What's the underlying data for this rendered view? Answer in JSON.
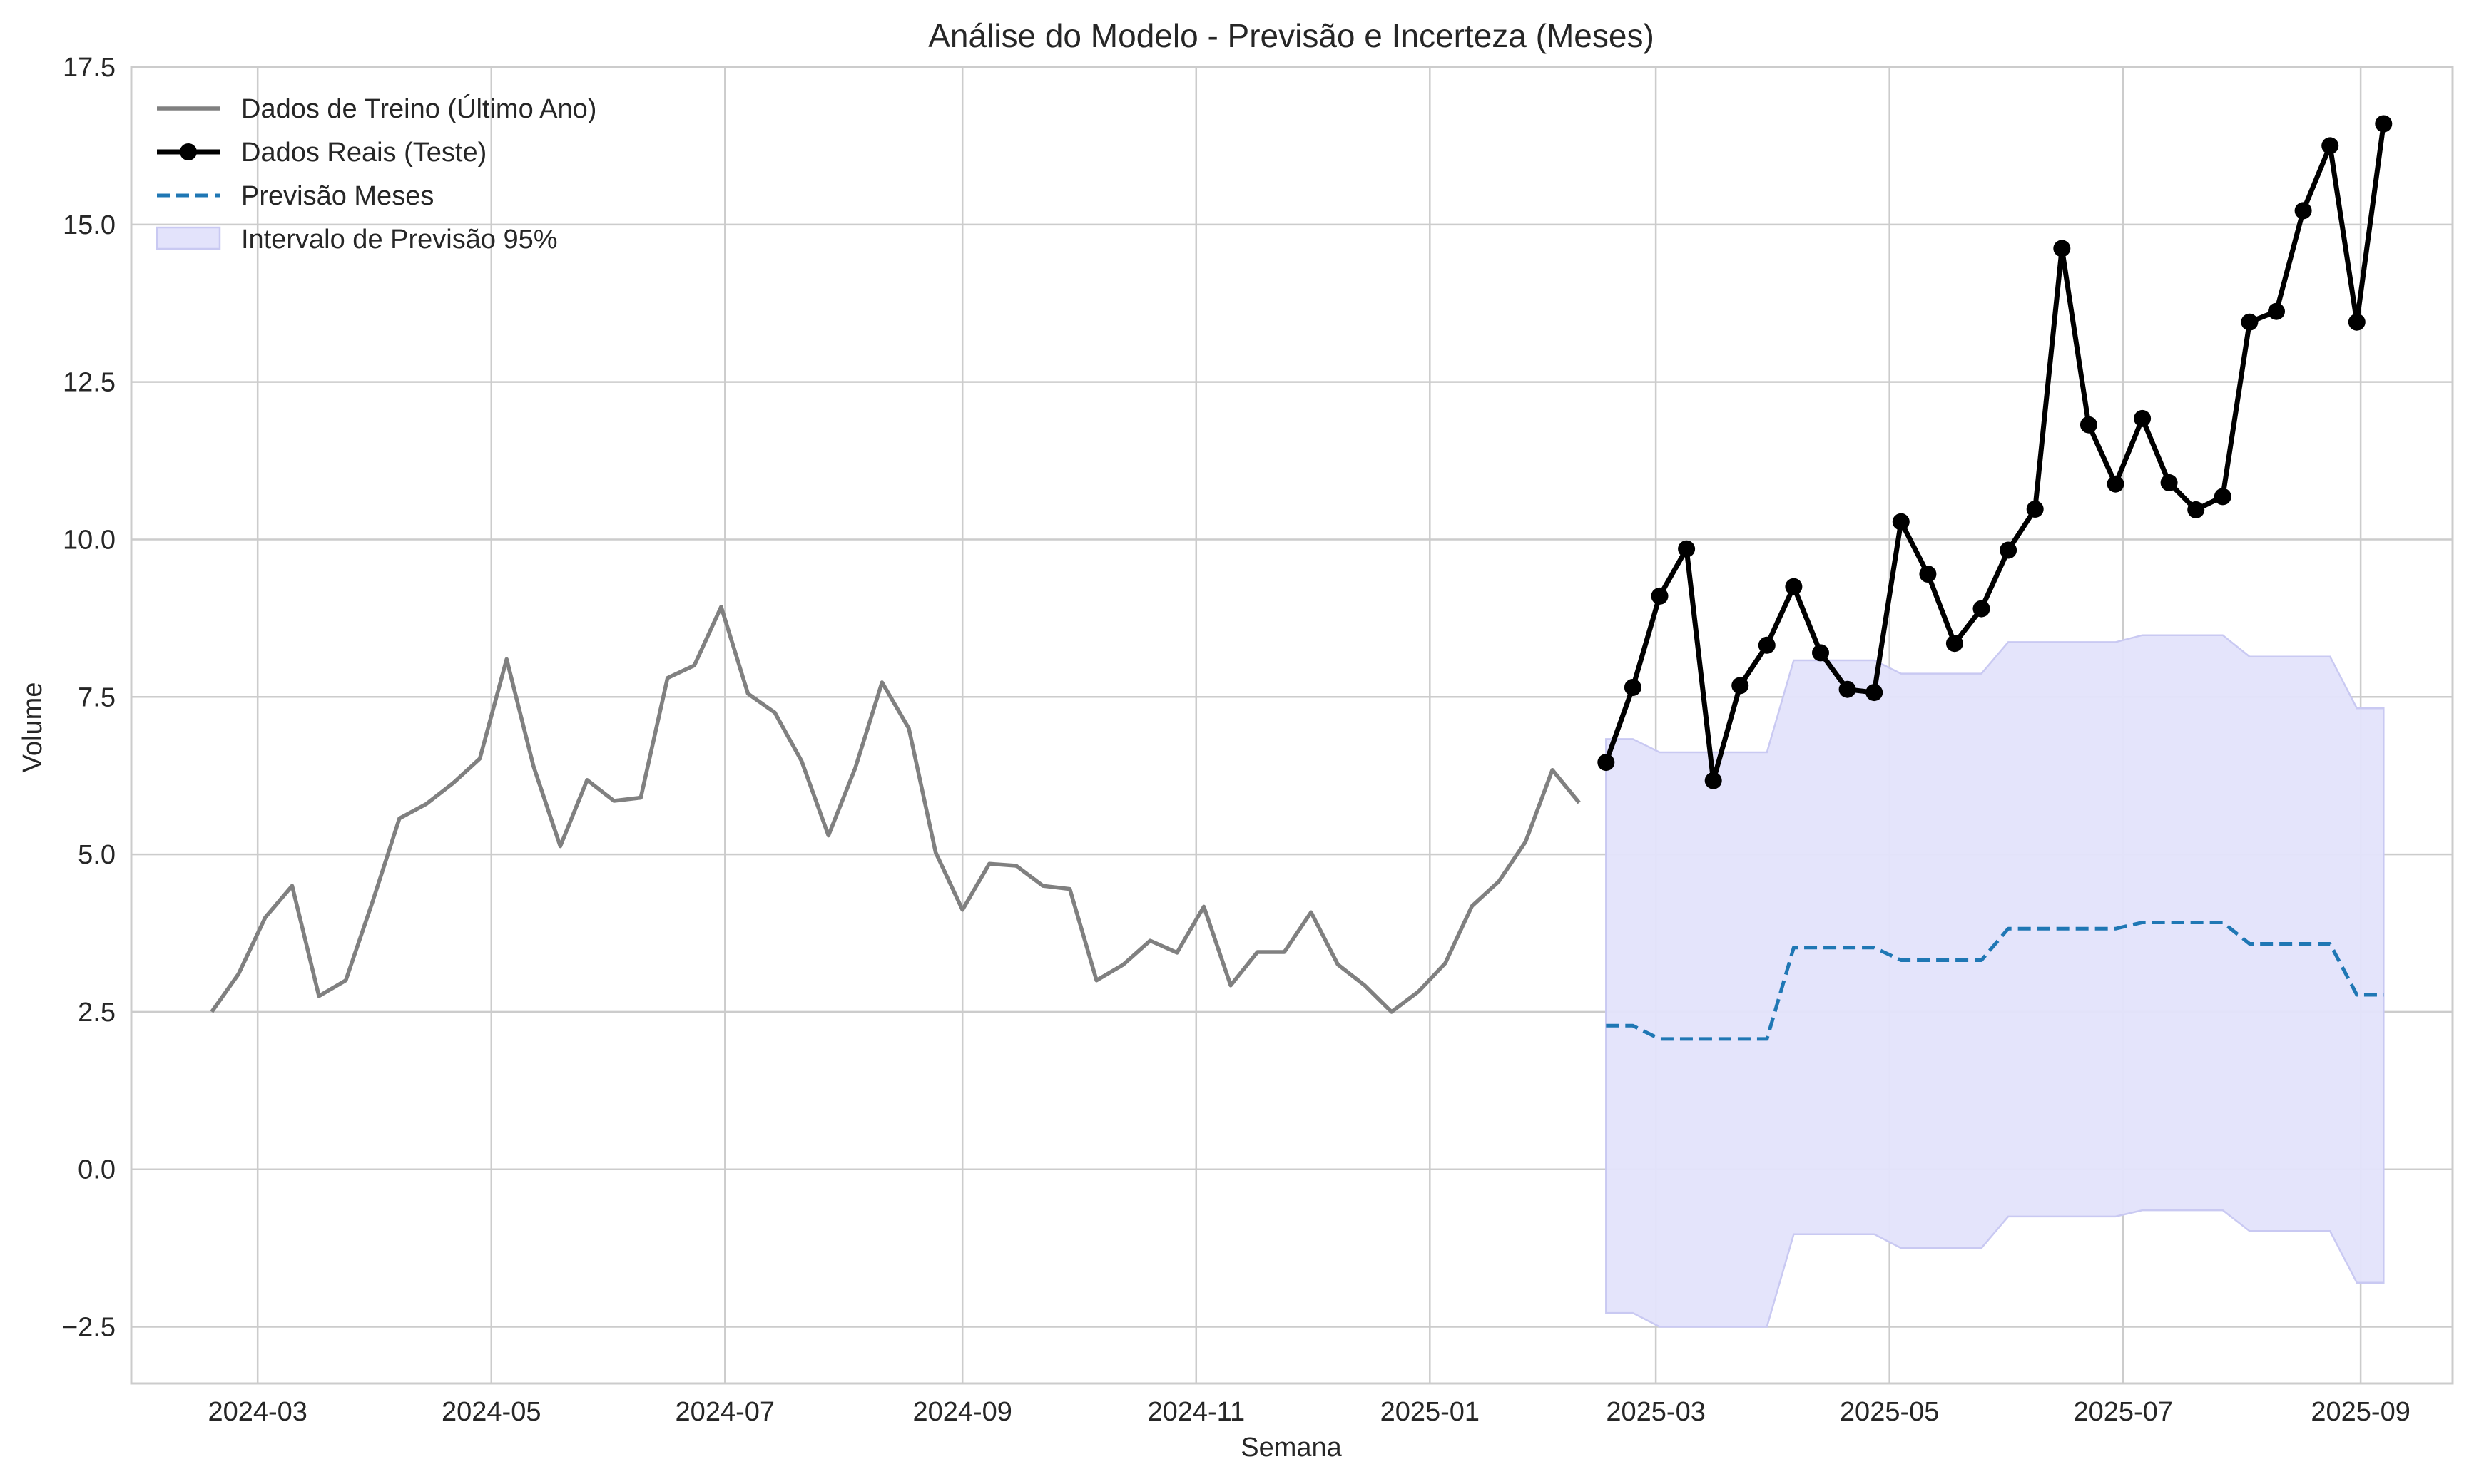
{
  "chart_data": {
    "type": "line",
    "title": "Análise do Modelo - Previsão e Incerteza (Meses)",
    "xlabel": "Semana",
    "ylabel": "Volume",
    "xlim": [
      "2024-01-28",
      "2025-09-25"
    ],
    "ylim": [
      -3.4,
      17.5
    ],
    "x_ticks": [
      "2024-03-01",
      "2024-05-01",
      "2024-07-01",
      "2024-09-01",
      "2024-11-01",
      "2025-01-01",
      "2025-03-01",
      "2025-05-01",
      "2025-07-01",
      "2025-09-01"
    ],
    "x_tick_labels": [
      "2024-03",
      "2024-05",
      "2024-07",
      "2024-09",
      "2024-11",
      "2025-01",
      "2025-03",
      "2025-05",
      "2025-07",
      "2025-09"
    ],
    "y_ticks": [
      -2.5,
      0.0,
      2.5,
      5.0,
      7.5,
      10.0,
      12.5,
      15.0,
      17.5
    ],
    "y_tick_labels": [
      "−2.5",
      "0.0",
      "2.5",
      "5.0",
      "7.5",
      "10.0",
      "12.5",
      "15.0",
      "17.5"
    ],
    "grid": true,
    "legend_position": "top-left",
    "colors": {
      "train": "#808080",
      "actual": "#000000",
      "forecast": "#1f77b4",
      "interval_fill": "#e3e3fb",
      "interval_edge": "#c9c9f2",
      "grid": "#cccccc",
      "frame": "#cccccc"
    },
    "series": [
      {
        "name": "Dados de Treino (Último Ano)",
        "x": [
          "2024-02-18",
          "2024-02-25",
          "2024-03-03",
          "2024-03-10",
          "2024-03-17",
          "2024-03-24",
          "2024-03-31",
          "2024-04-07",
          "2024-04-14",
          "2024-04-21",
          "2024-04-28",
          "2024-05-05",
          "2024-05-12",
          "2024-05-19",
          "2024-05-26",
          "2024-06-02",
          "2024-06-09",
          "2024-06-16",
          "2024-06-23",
          "2024-06-30",
          "2024-07-07",
          "2024-07-14",
          "2024-07-21",
          "2024-07-28",
          "2024-08-04",
          "2024-08-11",
          "2024-08-18",
          "2024-08-25",
          "2024-09-01",
          "2024-09-08",
          "2024-09-15",
          "2024-09-22",
          "2024-09-29",
          "2024-10-06",
          "2024-10-13",
          "2024-10-20",
          "2024-10-27",
          "2024-11-03",
          "2024-11-10",
          "2024-11-17",
          "2024-11-24",
          "2024-12-01",
          "2024-12-08",
          "2024-12-15",
          "2024-12-22",
          "2024-12-29",
          "2025-01-05",
          "2025-01-12",
          "2025-01-19",
          "2025-01-26",
          "2025-02-02",
          "2025-02-09"
        ],
        "y": [
          2.5,
          3.1,
          4.0,
          4.5,
          2.75,
          3.0,
          4.25,
          5.57,
          5.8,
          6.13,
          6.52,
          8.1,
          6.4,
          5.13,
          6.18,
          5.85,
          5.9,
          7.8,
          8.0,
          8.93,
          7.55,
          7.25,
          6.48,
          5.3,
          6.37,
          7.73,
          7.0,
          5.03,
          4.12,
          4.85,
          4.82,
          4.5,
          4.45,
          3.0,
          3.25,
          3.63,
          3.44,
          4.17,
          2.92,
          3.45,
          3.45,
          4.08,
          3.25,
          2.92,
          2.5,
          2.82,
          3.27,
          4.18,
          4.57,
          5.2,
          6.34,
          5.82
        ]
      },
      {
        "name": "Dados Reais (Teste)",
        "x": [
          "2025-02-16",
          "2025-02-23",
          "2025-03-02",
          "2025-03-09",
          "2025-03-16",
          "2025-03-23",
          "2025-03-30",
          "2025-04-06",
          "2025-04-13",
          "2025-04-20",
          "2025-04-27",
          "2025-05-04",
          "2025-05-11",
          "2025-05-18",
          "2025-05-25",
          "2025-06-01",
          "2025-06-08",
          "2025-06-15",
          "2025-06-22",
          "2025-06-29",
          "2025-07-06",
          "2025-07-13",
          "2025-07-20",
          "2025-07-27",
          "2025-08-03",
          "2025-08-10",
          "2025-08-17",
          "2025-08-24",
          "2025-08-31",
          "2025-09-07"
        ],
        "y": [
          6.46,
          7.65,
          9.1,
          9.85,
          6.17,
          7.68,
          8.32,
          9.25,
          8.2,
          7.62,
          7.57,
          10.28,
          9.45,
          8.35,
          8.9,
          9.83,
          10.48,
          14.62,
          11.82,
          10.88,
          11.92,
          10.9,
          10.47,
          10.68,
          13.45,
          13.62,
          15.22,
          16.25,
          13.45,
          16.6
        ]
      },
      {
        "name": "Previsão Meses",
        "x": [
          "2025-02-16",
          "2025-02-23",
          "2025-03-02",
          "2025-03-09",
          "2025-03-16",
          "2025-03-23",
          "2025-03-30",
          "2025-04-06",
          "2025-04-13",
          "2025-04-20",
          "2025-04-27",
          "2025-05-04",
          "2025-05-11",
          "2025-05-18",
          "2025-05-25",
          "2025-06-01",
          "2025-06-08",
          "2025-06-15",
          "2025-06-22",
          "2025-06-29",
          "2025-07-06",
          "2025-07-13",
          "2025-07-20",
          "2025-07-27",
          "2025-08-03",
          "2025-08-10",
          "2025-08-17",
          "2025-08-24",
          "2025-08-31",
          "2025-09-07"
        ],
        "y": [
          2.28,
          2.28,
          2.07,
          2.07,
          2.07,
          2.07,
          2.07,
          3.52,
          3.52,
          3.52,
          3.52,
          3.32,
          3.32,
          3.32,
          3.32,
          3.82,
          3.82,
          3.82,
          3.82,
          3.82,
          3.92,
          3.92,
          3.92,
          3.92,
          3.58,
          3.58,
          3.58,
          3.58,
          2.77,
          2.77
        ]
      }
    ],
    "interval": {
      "name": "Intervalo de Previsão 95%",
      "x": [
        "2025-02-16",
        "2025-02-23",
        "2025-03-02",
        "2025-03-09",
        "2025-03-16",
        "2025-03-23",
        "2025-03-30",
        "2025-04-06",
        "2025-04-13",
        "2025-04-20",
        "2025-04-27",
        "2025-05-04",
        "2025-05-11",
        "2025-05-18",
        "2025-05-25",
        "2025-06-01",
        "2025-06-08",
        "2025-06-15",
        "2025-06-22",
        "2025-06-29",
        "2025-07-06",
        "2025-07-13",
        "2025-07-20",
        "2025-07-27",
        "2025-08-03",
        "2025-08-10",
        "2025-08-17",
        "2025-08-24",
        "2025-08-31",
        "2025-09-07"
      ],
      "lower": [
        -2.28,
        -2.28,
        -2.5,
        -2.5,
        -2.5,
        -2.5,
        -2.5,
        -1.03,
        -1.03,
        -1.03,
        -1.03,
        -1.25,
        -1.25,
        -1.25,
        -1.25,
        -0.75,
        -0.75,
        -0.75,
        -0.75,
        -0.75,
        -0.65,
        -0.65,
        -0.65,
        -0.65,
        -0.98,
        -0.98,
        -0.98,
        -0.98,
        -1.8,
        -1.8
      ],
      "upper": [
        6.83,
        6.83,
        6.62,
        6.62,
        6.62,
        6.62,
        6.62,
        8.08,
        8.08,
        8.08,
        8.08,
        7.87,
        7.87,
        7.87,
        7.87,
        8.37,
        8.37,
        8.37,
        8.37,
        8.37,
        8.48,
        8.48,
        8.48,
        8.48,
        8.14,
        8.14,
        8.14,
        8.14,
        7.32,
        7.32
      ]
    }
  }
}
